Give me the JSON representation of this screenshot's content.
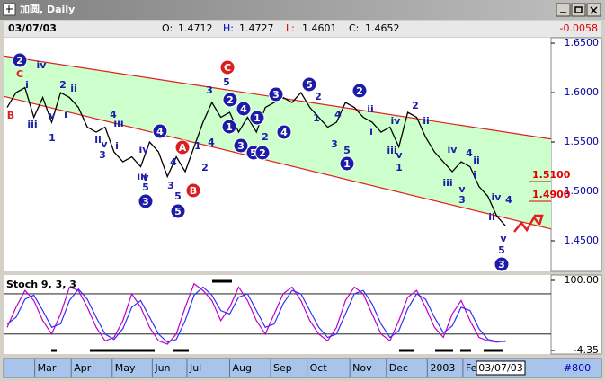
{
  "window": {
    "title": "加圆, Daily"
  },
  "header": {
    "date": "03/07/03",
    "fields": [
      {
        "label": "O:",
        "value": 1.4712
      },
      {
        "label": "H:",
        "value": 1.4727
      },
      {
        "label": "L:",
        "value": 1.4601
      },
      {
        "label": "C:",
        "value": 1.4652
      }
    ],
    "change": -0.0058
  },
  "footer": {
    "date": "03/07/03",
    "bars": "#800"
  },
  "chart_data": [
    {
      "type": "line",
      "color": "#000000",
      "values": [
        1.585,
        1.6,
        1.605,
        1.575,
        1.595,
        1.57,
        1.6,
        1.595,
        1.585,
        1.565,
        1.56,
        1.565,
        1.54,
        1.53,
        1.535,
        1.525,
        1.55,
        1.54,
        1.515,
        1.535,
        1.52,
        1.545,
        1.57,
        1.59,
        1.575,
        1.58,
        1.56,
        1.575,
        1.56,
        1.585,
        1.59,
        1.595,
        1.59,
        1.6,
        1.585,
        1.575,
        1.565,
        1.57,
        1.59,
        1.585,
        1.575,
        1.57,
        1.56,
        1.565,
        1.545,
        1.58,
        1.575,
        1.555,
        1.54,
        1.53,
        1.52,
        1.53,
        1.525,
        1.505,
        1.495,
        1.475,
        1.465
      ],
      "xlim": [
        -0.3,
        61.1
      ],
      "xticks": [
        {
          "value": 3.4,
          "label": "Mar"
        },
        {
          "value": 7.5,
          "label": "Apr"
        },
        {
          "value": 12.1,
          "label": "May"
        },
        {
          "value": 16.6,
          "label": "Jun"
        },
        {
          "value": 20.5,
          "label": "Jul"
        },
        {
          "value": 25.3,
          "label": "Aug"
        },
        {
          "value": 29.9,
          "label": "Sep"
        },
        {
          "value": 34.0,
          "label": "Oct"
        },
        {
          "value": 38.8,
          "label": "Nov"
        },
        {
          "value": 42.9,
          "label": "Dec"
        },
        {
          "value": 47.5,
          "label": "2003"
        },
        {
          "value": 51.5,
          "label": "Fe"
        }
      ],
      "ylim": [
        1.4191,
        1.6555
      ],
      "yticks": [
        {
          "value": 1.65,
          "label": "1.6500"
        },
        {
          "value": 1.6,
          "label": "1.6000"
        },
        {
          "value": 1.55,
          "label": "1.5500"
        },
        {
          "value": 1.5,
          "label": "1.5000"
        },
        {
          "value": 1.45,
          "label": "1.4500"
        }
      ],
      "channel": {
        "upper": [
          1.637,
          1.553
        ],
        "lower": [
          1.596,
          1.462
        ],
        "color": "#e02020",
        "fill": "#ccffcc"
      },
      "levels": [
        {
          "value": 1.51,
          "label": "1.5100"
        },
        {
          "value": 1.49,
          "label": "1.4900"
        }
      ],
      "annotations": [
        "2",
        "C",
        "i",
        "B",
        "iii",
        "iv",
        "v",
        "1",
        "2",
        "ii",
        "i",
        "4",
        "iii",
        "ii",
        "v",
        "3",
        "i",
        "4",
        "iv",
        "iii",
        "v",
        "5",
        "3",
        "A",
        "4",
        "3",
        "5",
        "5",
        "B",
        "2",
        "1",
        "4",
        "3",
        "C",
        "5",
        "2",
        "1",
        "4",
        "3",
        "5",
        "2",
        "1",
        "3",
        "4",
        "2",
        "5",
        "2",
        "1",
        "4",
        "3",
        "5",
        "1",
        "2",
        "ii",
        "i",
        "iv",
        "iii",
        "v",
        "1",
        "2",
        "ii",
        "iv",
        "4",
        "ii",
        "i",
        "iii",
        "v",
        "3",
        "iv",
        "ii",
        "4",
        "v",
        "5",
        "3"
      ]
    },
    {
      "type": "line",
      "title": "Stoch 9, 3, 3",
      "ylim": [
        -4.35,
        100
      ],
      "yticks": [
        {
          "value": 100,
          "label": "100.00"
        },
        {
          "value": -4.35,
          "label": "-4.35"
        }
      ],
      "levels": [
        80,
        20
      ],
      "series": [
        {
          "color": "#c000c0",
          "values": [
            30,
            60,
            85,
            70,
            40,
            20,
            50,
            90,
            85,
            60,
            30,
            10,
            15,
            40,
            80,
            60,
            30,
            10,
            5,
            20,
            60,
            95,
            85,
            70,
            40,
            60,
            90,
            70,
            40,
            20,
            50,
            80,
            90,
            70,
            40,
            20,
            10,
            30,
            70,
            90,
            80,
            50,
            20,
            10,
            40,
            75,
            85,
            60,
            30,
            15,
            50,
            70,
            40,
            15,
            10,
            8,
            10
          ]
        },
        {
          "color": "#3030ff",
          "values": [
            35,
            45,
            72,
            78,
            55,
            30,
            35,
            70,
            87,
            72,
            45,
            20,
            12,
            28,
            60,
            70,
            45,
            20,
            8,
            12,
            40,
            78,
            90,
            78,
            55,
            50,
            75,
            80,
            55,
            30,
            35,
            65,
            85,
            80,
            55,
            30,
            15,
            20,
            50,
            80,
            85,
            65,
            35,
            15,
            25,
            58,
            80,
            72,
            45,
            22,
            32,
            60,
            55,
            28,
            12,
            9,
            9
          ]
        }
      ]
    }
  ]
}
